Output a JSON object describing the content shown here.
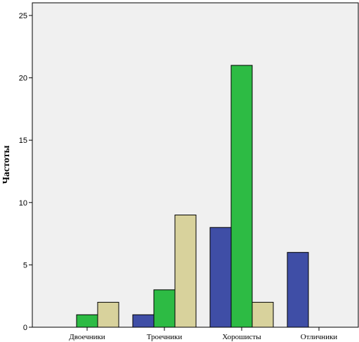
{
  "chart_data": {
    "type": "bar",
    "categories": [
      "Двоечники",
      "Троечники",
      "Хорошисты",
      "Отличники"
    ],
    "series": [
      {
        "values": [
          0,
          1,
          8,
          6
        ],
        "color": "#3f4ea6"
      },
      {
        "values": [
          1,
          3,
          21,
          0
        ],
        "color": "#2dbb44"
      },
      {
        "values": [
          2,
          9,
          2,
          0
        ],
        "color": "#d8d29c"
      }
    ],
    "ylabel": "Частоты",
    "ylim": [
      0,
      25
    ],
    "yticks": [
      0,
      5,
      10,
      15,
      20,
      25
    ],
    "grid": false,
    "plot_background": "#f0f0f0"
  }
}
